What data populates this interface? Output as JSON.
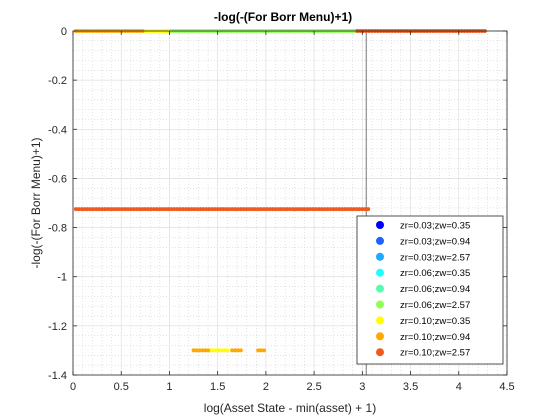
{
  "chart_data": {
    "type": "scatter",
    "title": "-log(-(For Borr Menu)+1)",
    "xlabel": "log(Asset State - min(asset) + 1)",
    "ylabel": "-log(-(For Borr Menu)+1)",
    "xlim": [
      0,
      4.5
    ],
    "ylim": [
      -1.4,
      0
    ],
    "xticks": [
      0,
      0.5,
      1,
      1.5,
      2,
      2.5,
      3,
      3.5,
      4,
      4.5
    ],
    "xtick_labels": [
      "0",
      "0.5",
      "1",
      "1.5",
      "2",
      "2.5",
      "3",
      "3.5",
      "4",
      "4.5"
    ],
    "yticks": [
      -1.4,
      -1.2,
      -1,
      -0.8,
      -0.6,
      -0.4,
      -0.2,
      0
    ],
    "ytick_labels": [
      "-1.4",
      "-1.2",
      "-1",
      "-0.8",
      "-0.6",
      "-0.4",
      "-0.2",
      "0"
    ],
    "grid": "major and minor (dotted)",
    "vertical_reference_line_x": 3.04,
    "legend_position": "bottom-right",
    "series": [
      {
        "name": "zr=0.03;zw=0.35",
        "color": "#0000ff",
        "segments": []
      },
      {
        "name": "zr=0.03;zw=0.94",
        "color": "#1f60ff",
        "segments": []
      },
      {
        "name": "zr=0.03;zw=2.57",
        "color": "#1fa9ff",
        "segments": []
      },
      {
        "name": "zr=0.06;zw=0.35",
        "color": "#1fffff",
        "segments": []
      },
      {
        "name": "zr=0.06;zw=0.94",
        "color": "#52ffad",
        "segments": []
      },
      {
        "name": "zr=0.06;zw=2.57",
        "color": "#8fff52",
        "segments": [
          {
            "y": 0,
            "x_from": 0.95,
            "x_to": 2.95
          }
        ]
      },
      {
        "name": "zr=0.10;zw=0.35",
        "color": "#ffff00",
        "segments": [
          {
            "y": 0,
            "x_from": 0.72,
            "x_to": 1.0
          },
          {
            "y": -1.3,
            "x_from": 1.42,
            "x_to": 1.62
          }
        ]
      },
      {
        "name": "zr=0.10;zw=0.94",
        "color": "#ffa800",
        "segments": [
          {
            "y": 0,
            "x_from": 0.03,
            "x_to": 0.72
          },
          {
            "y": -1.3,
            "x_from": 1.25,
            "x_to": 1.42
          },
          {
            "y": -1.3,
            "x_from": 1.65,
            "x_to": 1.75
          },
          {
            "y": -1.3,
            "x_from": 1.92,
            "x_to": 1.98
          }
        ]
      },
      {
        "name": "zr=0.10;zw=2.57",
        "color": "#f05a1e",
        "segments": [
          {
            "y": -0.725,
            "x_from": 0.03,
            "x_to": 3.06
          },
          {
            "y": 0,
            "x_from": 2.95,
            "x_to": 4.28
          }
        ]
      }
    ]
  }
}
